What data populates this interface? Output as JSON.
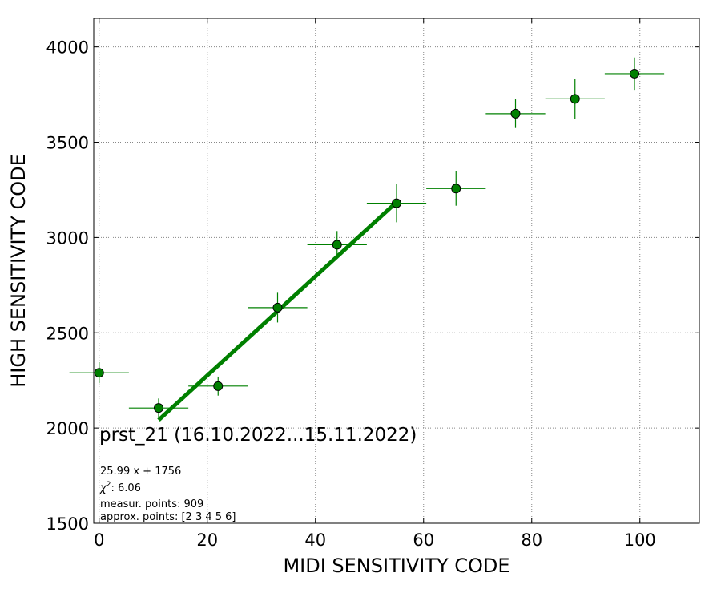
{
  "chart_data": {
    "type": "scatter",
    "xlabel": "MIDI SENSITIVITY CODE",
    "ylabel": "HIGH SENSITIVITY CODE",
    "xlim": [
      -1,
      111
    ],
    "ylim": [
      1500,
      4150
    ],
    "xticks": [
      0,
      20,
      40,
      60,
      80,
      100
    ],
    "yticks": [
      1500,
      2000,
      2500,
      3000,
      3500,
      4000
    ],
    "grid": true,
    "points": {
      "x": [
        0,
        11,
        22,
        33,
        44,
        55,
        66,
        77,
        88,
        99
      ],
      "y": [
        2290,
        2105,
        2220,
        2632,
        2962,
        3180,
        3257,
        3650,
        3728,
        3860
      ],
      "xerr": [
        5.5,
        5.5,
        5.5,
        5.5,
        5.5,
        5.5,
        5.5,
        5.5,
        5.5,
        5.5
      ],
      "yerr": [
        55,
        50,
        50,
        78,
        72,
        100,
        90,
        75,
        105,
        85
      ],
      "color": "#008000"
    },
    "fit": {
      "slope": 25.99,
      "intercept": 1756,
      "x_range": [
        11,
        55
      ],
      "color": "#008000"
    },
    "annotations": {
      "title": "prst_21 (16.10.2022...15.11.2022)",
      "equation": "25.99 x + 1756",
      "chi2_label": "χ",
      "chi2_sup": "2",
      "chi2_value": ": 6.06",
      "measured": "measur. points: 909",
      "approx": "approx. points: [2 3 4 5 6]"
    }
  }
}
